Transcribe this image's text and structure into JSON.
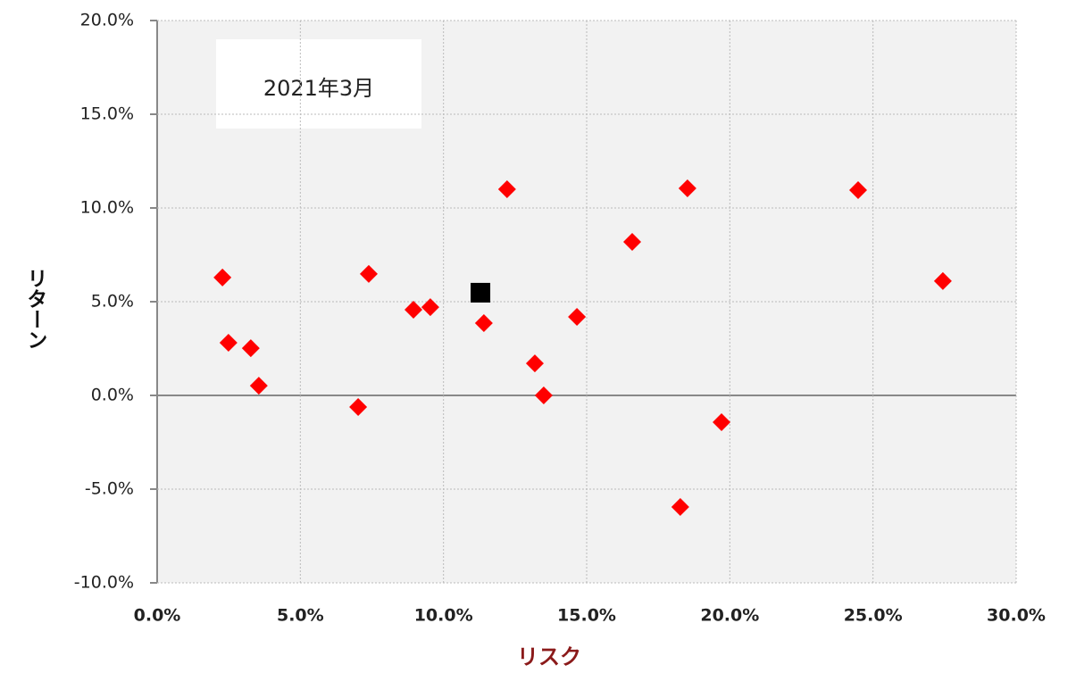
{
  "chart_data": {
    "type": "scatter",
    "annotation": "2021年3月",
    "x_label": "リスク",
    "y_label": "リターン",
    "xlim": [
      0,
      30
    ],
    "ylim": [
      -10,
      20
    ],
    "xticks": [
      {
        "value": 0,
        "label": "0.0%"
      },
      {
        "value": 5,
        "label": "5.0%"
      },
      {
        "value": 10,
        "label": "10.0%"
      },
      {
        "value": 15,
        "label": "15.0%"
      },
      {
        "value": 20,
        "label": "20.0%"
      },
      {
        "value": 25,
        "label": "25.0%"
      },
      {
        "value": 30,
        "label": "30.0%"
      }
    ],
    "yticks": [
      {
        "value": -10,
        "label": "-10.0%"
      },
      {
        "value": -5,
        "label": "-5.0%"
      },
      {
        "value": 0,
        "label": "0.0%"
      },
      {
        "value": 5,
        "label": "5.0%"
      },
      {
        "value": 10,
        "label": "10.0%"
      },
      {
        "value": 15,
        "label": "15.0%"
      },
      {
        "value": 20,
        "label": "20.0%"
      }
    ],
    "grid": true,
    "series": [
      {
        "color": "#ff0000",
        "marker": "diamond",
        "x": [
          2.28,
          2.49,
          3.27,
          3.55,
          7.02,
          7.39,
          8.95,
          9.54,
          11.41,
          12.22,
          13.19,
          13.5,
          14.66,
          16.59,
          18.27,
          18.52,
          19.71,
          24.48,
          27.44
        ],
        "values": [
          6.29,
          2.81,
          2.52,
          0.52,
          -0.62,
          6.48,
          4.57,
          4.71,
          3.86,
          11.0,
          1.71,
          0.0,
          4.19,
          8.19,
          -5.95,
          11.05,
          -1.43,
          10.95,
          6.1
        ]
      },
      {
        "color": "#000000",
        "marker": "square",
        "x": [
          11.29
        ],
        "values": [
          5.48
        ]
      }
    ]
  }
}
